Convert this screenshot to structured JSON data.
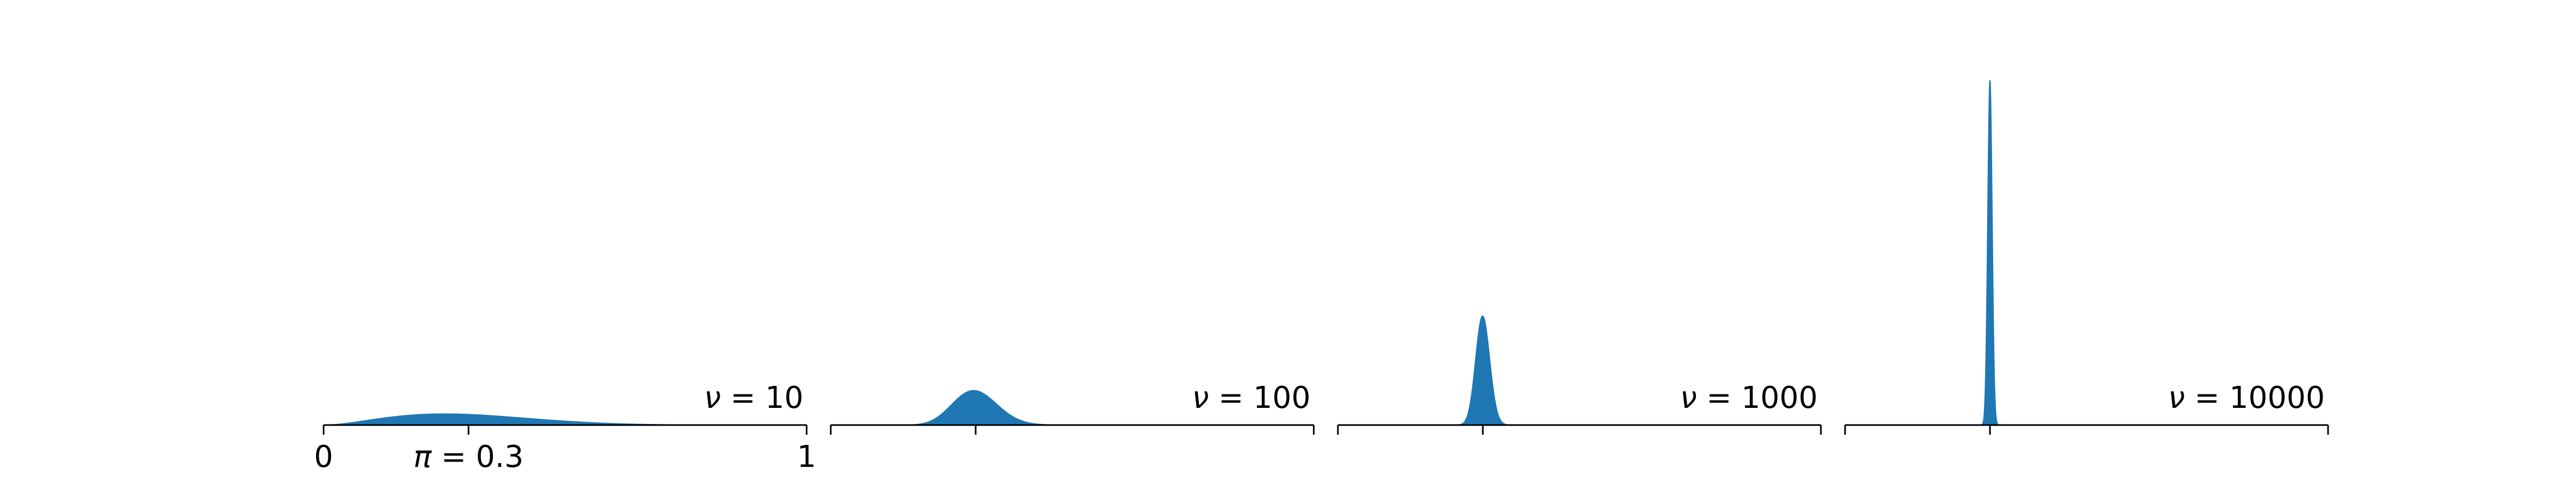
{
  "chart_data": [
    {
      "type": "area",
      "xlim": [
        0,
        1
      ],
      "ticks": [
        0,
        0.3,
        1
      ],
      "tick_labels": [
        "0",
        "",
        "1"
      ],
      "annotation_pi": {
        "symbol": "π",
        "text": " = 0.3"
      },
      "panel_label": {
        "symbol": "ν",
        "text": " = 10"
      },
      "density": {
        "family": "beta",
        "mean": 0.3,
        "concentration": 10
      },
      "peak_value": 2.9,
      "color": "#1f77b4"
    },
    {
      "type": "area",
      "xlim": [
        0,
        1
      ],
      "ticks": [
        0,
        0.3,
        1
      ],
      "tick_labels": [
        "",
        "",
        ""
      ],
      "panel_label": {
        "symbol": "ν",
        "text": " = 100"
      },
      "density": {
        "family": "beta",
        "mean": 0.3,
        "concentration": 100
      },
      "peak_value": 8.7,
      "color": "#1f77b4"
    },
    {
      "type": "area",
      "xlim": [
        0,
        1
      ],
      "ticks": [
        0,
        0.3,
        1
      ],
      "tick_labels": [
        "",
        "",
        ""
      ],
      "panel_label": {
        "symbol": "ν",
        "text": " = 1000"
      },
      "density": {
        "family": "beta",
        "mean": 0.3,
        "concentration": 1000
      },
      "peak_value": 27.5,
      "color": "#1f77b4"
    },
    {
      "type": "area",
      "xlim": [
        0,
        1
      ],
      "ticks": [
        0,
        0.3,
        1
      ],
      "tick_labels": [
        "",
        "",
        ""
      ],
      "panel_label": {
        "symbol": "ν",
        "text": " = 10000"
      },
      "density": {
        "family": "beta",
        "mean": 0.3,
        "concentration": 10000
      },
      "peak_value": 87,
      "color": "#1f77b4"
    }
  ]
}
